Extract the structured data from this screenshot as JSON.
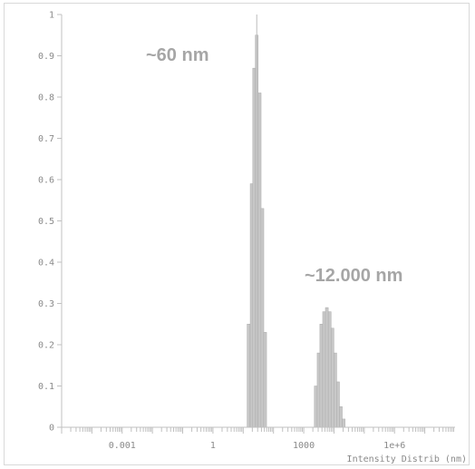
{
  "colors": {
    "bar_fill": "#c8c8c8",
    "bar_stroke": "#ababab",
    "axis": "#c0c0c0",
    "marker_line": "#bdbdbd",
    "text": "#8a8a8a",
    "annotation": "#a6a6a6"
  },
  "chart_data": {
    "type": "bar",
    "xlabel": "Intensity Distrib (nm)",
    "ylabel": "",
    "x_scale": "log",
    "xlim": [
      1e-05,
      100000000
    ],
    "ylim": [
      0,
      1
    ],
    "grid": false,
    "x_tick_labels": [
      {
        "value": 0.001,
        "label": "0.001"
      },
      {
        "value": 1,
        "label": "1"
      },
      {
        "value": 1000,
        "label": "1000"
      },
      {
        "value": 1000000,
        "label": "1e+6"
      }
    ],
    "y_ticks": [
      0,
      0.1,
      0.2,
      0.3,
      0.4,
      0.5,
      0.6,
      0.7,
      0.8,
      0.9,
      1
    ],
    "y_tick_labels": [
      "0",
      "0.1",
      "0.2",
      "0.3",
      "0.4",
      "0.5",
      "0.6",
      "0.7",
      "0.8",
      "0.9",
      "1"
    ],
    "series": [
      {
        "values": [
          [
            15,
            0.25
          ],
          [
            19,
            0.59
          ],
          [
            23,
            0.87
          ],
          [
            28,
            0.95
          ],
          [
            35,
            0.81
          ],
          [
            43,
            0.53
          ],
          [
            53,
            0.23
          ],
          [
            2500,
            0.1
          ],
          [
            3100,
            0.18
          ],
          [
            3800,
            0.25
          ],
          [
            4700,
            0.28
          ],
          [
            5800,
            0.29
          ],
          [
            7200,
            0.28
          ],
          [
            8900,
            0.24
          ],
          [
            11000,
            0.18
          ],
          [
            13600,
            0.11
          ],
          [
            16800,
            0.05
          ],
          [
            20800,
            0.02
          ]
        ]
      }
    ],
    "marker_line_x": 28,
    "annotations": [
      {
        "text": "~60 nm"
      },
      {
        "text": "~12.000 nm"
      }
    ]
  }
}
